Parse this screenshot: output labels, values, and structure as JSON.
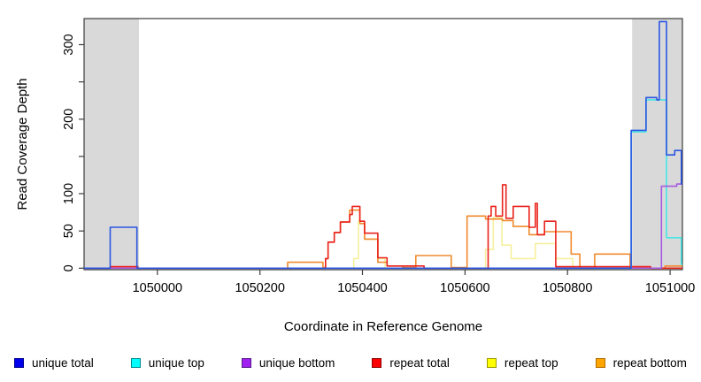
{
  "chart_data": {
    "type": "line",
    "title": "",
    "xlabel": "Coordinate in Reference Genome",
    "ylabel": "Read Coverage Depth",
    "xlim": [
      1049857,
      1051024
    ],
    "ylim": [
      -2,
      335
    ],
    "grid": false,
    "legend_position": "bottom",
    "frame_color": "#3c3c3c",
    "x_ticks": [
      {
        "value": 1050000,
        "label": "1050000"
      },
      {
        "value": 1050200,
        "label": "1050200"
      },
      {
        "value": 1050400,
        "label": "1050400"
      },
      {
        "value": 1050600,
        "label": "1050600"
      },
      {
        "value": 1050800,
        "label": "1050800"
      },
      {
        "value": 1051000,
        "label": "1051000"
      }
    ],
    "y_ticks": [
      {
        "value": 0,
        "label": "0"
      },
      {
        "value": 50,
        "label": "50"
      },
      {
        "value": 100,
        "label": "100"
      },
      {
        "value": 150,
        "label": ""
      },
      {
        "value": 200,
        "label": "200"
      },
      {
        "value": 250,
        "label": ""
      },
      {
        "value": 300,
        "label": "300"
      }
    ],
    "shaded_regions": [
      {
        "x0": 1049857,
        "x1": 1049964,
        "color": "#d9d9d9"
      },
      {
        "x0": 1050926,
        "x1": 1051024,
        "color": "#d9d9d9"
      }
    ],
    "series": [
      {
        "name": "repeat top",
        "slug": "repeat-top",
        "line_color": "#f6f09c",
        "points": [
          [
            1049857,
            0
          ],
          [
            1050383,
            13
          ],
          [
            1050392,
            63
          ],
          [
            1050404,
            39
          ],
          [
            1050430,
            13
          ],
          [
            1050444,
            0
          ],
          [
            1050640,
            25
          ],
          [
            1050655,
            68
          ],
          [
            1050672,
            31
          ],
          [
            1050690,
            13
          ],
          [
            1050737,
            33
          ],
          [
            1050777,
            13
          ],
          [
            1050810,
            0
          ],
          [
            1051024,
            0
          ]
        ]
      },
      {
        "name": "repeat bottom",
        "slug": "repeat-bottom",
        "line_color": "#f08a2e",
        "points": [
          [
            1049857,
            0
          ],
          [
            1050254,
            8
          ],
          [
            1050323,
            1
          ],
          [
            1050328,
            13
          ],
          [
            1050333,
            35
          ],
          [
            1050345,
            48
          ],
          [
            1050357,
            62
          ],
          [
            1050375,
            78
          ],
          [
            1050395,
            60
          ],
          [
            1050404,
            39
          ],
          [
            1050430,
            8
          ],
          [
            1050448,
            3
          ],
          [
            1050478,
            1
          ],
          [
            1050504,
            17
          ],
          [
            1050573,
            1
          ],
          [
            1050604,
            70
          ],
          [
            1050640,
            66
          ],
          [
            1050673,
            64
          ],
          [
            1050694,
            56
          ],
          [
            1050725,
            45
          ],
          [
            1050755,
            49
          ],
          [
            1050807,
            19
          ],
          [
            1050824,
            0
          ],
          [
            1050853,
            19
          ],
          [
            1050922,
            1
          ],
          [
            1050962,
            0
          ],
          [
            1050990,
            3
          ],
          [
            1051024,
            3
          ]
        ]
      },
      {
        "name": "repeat total",
        "slug": "repeat-total",
        "line_color": "#e9231d",
        "points": [
          [
            1049857,
            0
          ],
          [
            1049908,
            2
          ],
          [
            1049962,
            0
          ],
          [
            1050328,
            13
          ],
          [
            1050333,
            35
          ],
          [
            1050345,
            48
          ],
          [
            1050357,
            62
          ],
          [
            1050375,
            72
          ],
          [
            1050380,
            83
          ],
          [
            1050395,
            63
          ],
          [
            1050404,
            47
          ],
          [
            1050430,
            14
          ],
          [
            1050448,
            3
          ],
          [
            1050520,
            0
          ],
          [
            1050645,
            70
          ],
          [
            1050651,
            83
          ],
          [
            1050660,
            70
          ],
          [
            1050673,
            112
          ],
          [
            1050680,
            67
          ],
          [
            1050694,
            83
          ],
          [
            1050725,
            55
          ],
          [
            1050737,
            87
          ],
          [
            1050741,
            45
          ],
          [
            1050755,
            63
          ],
          [
            1050777,
            2
          ],
          [
            1050962,
            0
          ],
          [
            1051024,
            0
          ]
        ]
      },
      {
        "name": "unique top",
        "slug": "unique-top",
        "line_color": "#45e6e6",
        "points": [
          [
            1049857,
            0
          ],
          [
            1050924,
            183
          ],
          [
            1050953,
            226
          ],
          [
            1050993,
            41
          ],
          [
            1051022,
            5
          ],
          [
            1051024,
            5
          ]
        ]
      },
      {
        "name": "unique bottom",
        "slug": "unique-bottom",
        "line_color": "#a55ae0",
        "points": [
          [
            1049857,
            0
          ],
          [
            1050983,
            110
          ],
          [
            1051013,
            113
          ],
          [
            1051024,
            113
          ]
        ]
      },
      {
        "name": "unique total",
        "slug": "unique-total",
        "line_color": "#2b55e2",
        "points": [
          [
            1049857,
            0
          ],
          [
            1049908,
            55
          ],
          [
            1049960,
            0
          ],
          [
            1050924,
            185
          ],
          [
            1050953,
            229
          ],
          [
            1050974,
            226
          ],
          [
            1050979,
            331
          ],
          [
            1050993,
            152
          ],
          [
            1051009,
            158
          ],
          [
            1051022,
            113
          ],
          [
            1051024,
            113
          ]
        ]
      }
    ]
  },
  "legend": {
    "items": [
      {
        "label": "unique total",
        "slug": "unique-total",
        "fill": "#0000ee",
        "border": "#00008b"
      },
      {
        "label": "unique top",
        "slug": "unique-top",
        "fill": "#00ffff",
        "border": "#008b8b"
      },
      {
        "label": "unique bottom",
        "slug": "unique-bottom",
        "fill": "#a020f0",
        "border": "#551a8b"
      },
      {
        "label": "repeat total",
        "slug": "repeat-total",
        "fill": "#ff0000",
        "border": "#8b0000"
      },
      {
        "label": "repeat top",
        "slug": "repeat-top",
        "fill": "#ffff00",
        "border": "#999900"
      },
      {
        "label": "repeat bottom",
        "slug": "repeat-bottom",
        "fill": "#ffa500",
        "border": "#b36b00"
      }
    ]
  }
}
